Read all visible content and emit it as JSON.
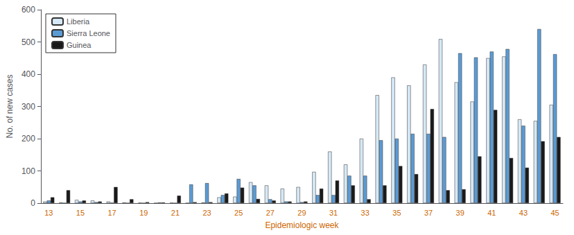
{
  "chart_data": {
    "type": "bar",
    "xlabel": "Epidemiologic week",
    "ylabel": "No. of new cases",
    "categories": [
      "13",
      null,
      "15",
      null,
      "17",
      null,
      "19",
      null,
      "21",
      null,
      "23",
      null,
      "25",
      null,
      "27",
      null,
      "29",
      null,
      "31",
      null,
      "33",
      null,
      "35",
      null,
      "37",
      null,
      "39",
      null,
      "41",
      null,
      "43",
      null,
      "45"
    ],
    "series": [
      {
        "name": "Liberia",
        "color": "#d6e8f5",
        "values": [
          5,
          2,
          10,
          8,
          5,
          2,
          1,
          0,
          1,
          0,
          2,
          18,
          20,
          65,
          55,
          45,
          50,
          97,
          160,
          120,
          200,
          335,
          390,
          365,
          430,
          509,
          375,
          315,
          450,
          455,
          260,
          255,
          305
        ]
      },
      {
        "name": "Sierra Leone",
        "color": "#5b9bd5",
        "values": [
          8,
          0,
          5,
          3,
          1,
          0,
          0,
          2,
          0,
          58,
          62,
          25,
          75,
          55,
          12,
          5,
          3,
          25,
          25,
          85,
          85,
          195,
          200,
          215,
          215,
          205,
          465,
          452,
          470,
          478,
          240,
          540,
          462
        ]
      },
      {
        "name": "Guinea",
        "color": "#1a1a1a",
        "values": [
          18,
          40,
          8,
          5,
          50,
          12,
          3,
          2,
          23,
          3,
          3,
          30,
          48,
          13,
          8,
          5,
          5,
          45,
          70,
          55,
          12,
          55,
          115,
          90,
          292,
          40,
          43,
          145,
          289,
          140,
          110,
          192,
          205
        ]
      }
    ],
    "ylim": [
      0,
      600
    ],
    "yticks": [
      0,
      100,
      200,
      300,
      400,
      500,
      600
    ],
    "grid": false,
    "legend": "upper left"
  }
}
